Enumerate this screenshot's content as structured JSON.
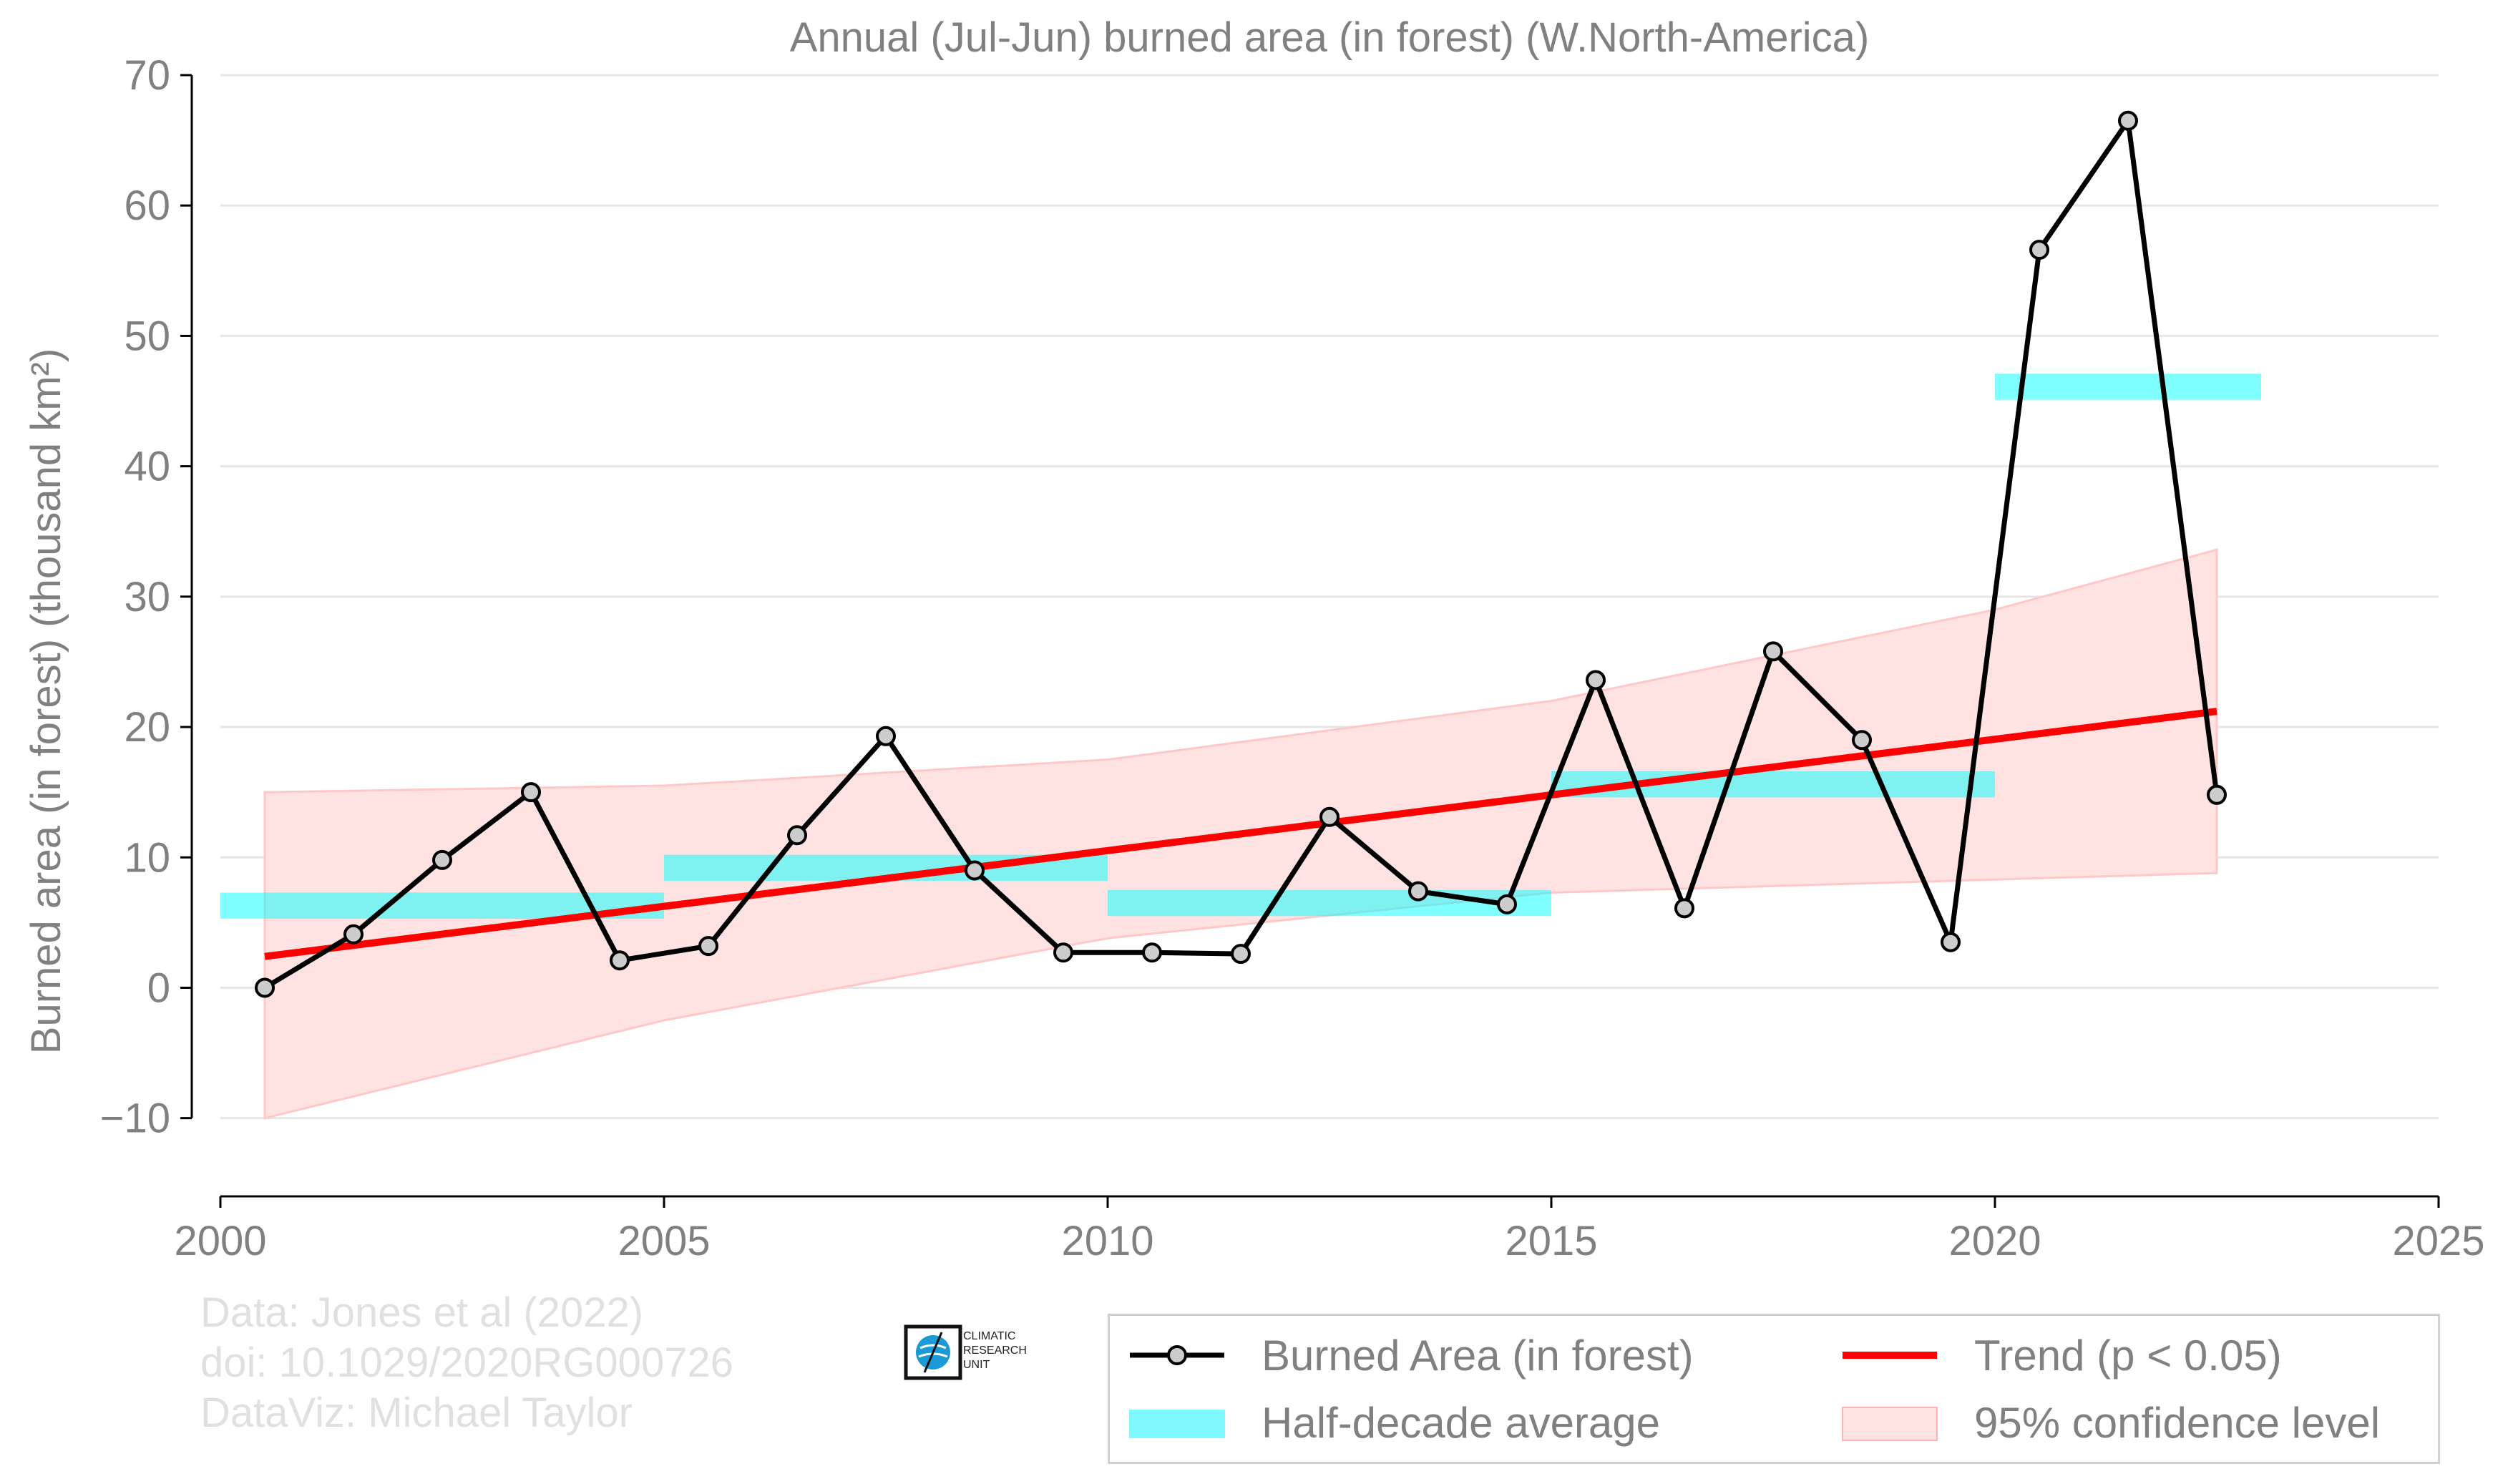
{
  "chart_data": {
    "type": "line",
    "title": "Annual (Jul-Jun) burned area (in forest) (W.North-America)",
    "ylabel": "Burned area (in forest) (thousand km²)",
    "xlabel": "",
    "xlim": [
      2000,
      2025
    ],
    "ylim": [
      -16,
      70
    ],
    "x_ticks": [
      2000,
      2005,
      2010,
      2015,
      2020,
      2025
    ],
    "y_ticks": [
      -10,
      0,
      10,
      20,
      30,
      40,
      50,
      60,
      70
    ],
    "x_tick_labels": [
      "2000",
      "2005",
      "2010",
      "2015",
      "2020",
      "2025"
    ],
    "y_tick_labels": [
      "−10",
      "0",
      "10",
      "20",
      "30",
      "40",
      "50",
      "60",
      "70"
    ],
    "grid": "horizontal",
    "series": [
      {
        "name": "Burned Area (in forest)",
        "color": "#000000",
        "marker_fill": "#cccccc",
        "x": [
          2000.5,
          2001.5,
          2002.5,
          2003.5,
          2004.5,
          2005.5,
          2006.5,
          2007.5,
          2008.5,
          2009.5,
          2010.5,
          2011.5,
          2012.5,
          2013.5,
          2014.5,
          2015.5,
          2016.5,
          2017.5,
          2018.5,
          2019.5,
          2020.5,
          2021.5,
          2022.5
        ],
        "values": [
          0.0,
          4.1,
          9.8,
          15.0,
          2.1,
          3.2,
          11.7,
          19.3,
          9.0,
          2.7,
          2.7,
          2.6,
          13.1,
          7.4,
          6.4,
          23.6,
          6.1,
          25.8,
          19.0,
          3.5,
          56.6,
          66.5,
          14.8
        ]
      },
      {
        "name": "Trend (p < 0.05)",
        "color": "#ff0000",
        "x": [
          2000.5,
          2022.5
        ],
        "values": [
          2.4,
          21.2
        ]
      }
    ],
    "half_decade_average": {
      "name": "Half-decade average",
      "color": "#00ffff",
      "segments": [
        {
          "x0": 2000,
          "x1": 2005,
          "value": 6.3
        },
        {
          "x0": 2005,
          "x1": 2010,
          "value": 9.2
        },
        {
          "x0": 2010,
          "x1": 2015,
          "value": 6.5
        },
        {
          "x0": 2015,
          "x1": 2020,
          "value": 15.6
        },
        {
          "x0": 2020,
          "x1": 2023,
          "value": 46.1
        }
      ]
    },
    "confidence_band": {
      "name": "95% confidence level",
      "color": "#ffb3b3",
      "x": [
        2000.5,
        2005,
        2010,
        2015,
        2020,
        2022.5
      ],
      "lower": [
        -10.0,
        -2.5,
        3.8,
        7.3,
        8.3,
        8.8
      ],
      "upper": [
        15.0,
        15.5,
        17.5,
        22.0,
        29.0,
        33.6
      ]
    },
    "legend_position": "bottom-right, below plot"
  },
  "credits": {
    "line1": "Data: Jones et al (2022)",
    "line2": "doi: 10.1029/2020RG000726",
    "line3": "DataViz: Michael Taylor"
  },
  "logo": {
    "text": "CLIMATIC\nRESEARCH\nUNIT",
    "icon": "cru-globe-icon"
  },
  "legend": {
    "burned": "Burned Area (in forest)",
    "trend": "Trend (p < 0.05)",
    "half": "Half-decade average",
    "ci": "95% confidence level"
  }
}
